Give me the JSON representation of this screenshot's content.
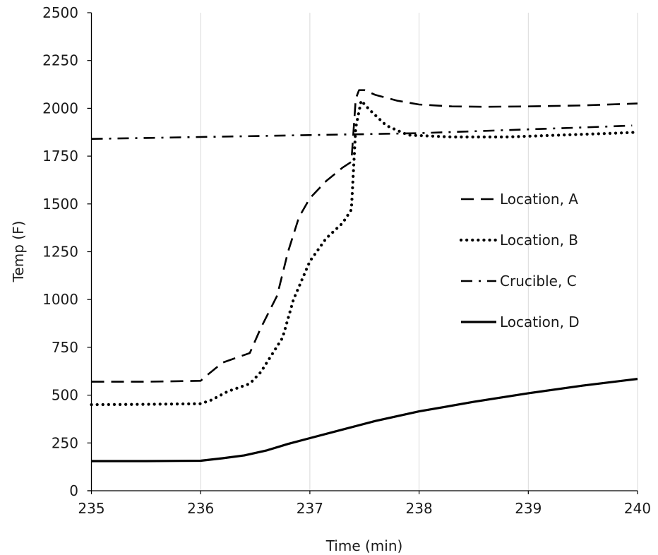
{
  "chart_data": {
    "type": "line",
    "title": "",
    "xlabel": "Time (min)",
    "ylabel": "Temp (F)",
    "xlim": [
      235,
      240
    ],
    "ylim": [
      0,
      2500
    ],
    "x_ticks": [
      235,
      236,
      237,
      238,
      239,
      240
    ],
    "y_ticks": [
      0,
      250,
      500,
      750,
      1000,
      1250,
      1500,
      1750,
      2000,
      2250,
      2500
    ],
    "grid": "vertical",
    "legend_position": "right",
    "series": [
      {
        "name": "Location, A",
        "style": "dashed",
        "color": "#000000",
        "x": [
          235,
          235.5,
          236,
          236.05,
          236.2,
          236.35,
          236.45,
          236.55,
          236.7,
          236.8,
          236.9,
          237.0,
          237.15,
          237.3,
          237.38,
          237.42,
          237.45,
          237.5,
          237.6,
          237.8,
          238.0,
          238.3,
          238.6,
          239.0,
          239.5,
          240
        ],
        "y": [
          570,
          570,
          575,
          600,
          670,
          700,
          720,
          850,
          1020,
          1250,
          1430,
          1530,
          1620,
          1690,
          1720,
          2050,
          2095,
          2095,
          2070,
          2040,
          2020,
          2010,
          2008,
          2010,
          2015,
          2025
        ]
      },
      {
        "name": "Location, B",
        "style": "dotted",
        "color": "#000000",
        "x": [
          235,
          235.5,
          236,
          236.1,
          236.25,
          236.45,
          236.55,
          236.75,
          236.85,
          237.0,
          237.15,
          237.3,
          237.38,
          237.42,
          237.47,
          237.55,
          237.7,
          237.9,
          238.3,
          238.8,
          239.3,
          239.8,
          240
        ],
        "y": [
          450,
          452,
          455,
          475,
          520,
          560,
          620,
          800,
          1000,
          1200,
          1320,
          1400,
          1470,
          1900,
          2040,
          1990,
          1910,
          1860,
          1850,
          1850,
          1860,
          1870,
          1875
        ]
      },
      {
        "name": "Crucible, C",
        "style": "dash-dot",
        "color": "#000000",
        "x": [
          235,
          235.5,
          236,
          236.5,
          237,
          237.5,
          238,
          238.5,
          239,
          239.5,
          239.95
        ],
        "y": [
          1840,
          1845,
          1850,
          1855,
          1860,
          1865,
          1870,
          1880,
          1890,
          1900,
          1910
        ]
      },
      {
        "name": "Location, D",
        "style": "solid",
        "color": "#000000",
        "x": [
          235,
          235.5,
          236,
          236.2,
          236.4,
          236.6,
          236.8,
          237.0,
          237.3,
          237.6,
          238.0,
          238.5,
          239.0,
          239.5,
          240
        ],
        "y": [
          155,
          155,
          157,
          170,
          185,
          210,
          245,
          275,
          320,
          365,
          415,
          465,
          510,
          550,
          585
        ]
      }
    ]
  }
}
